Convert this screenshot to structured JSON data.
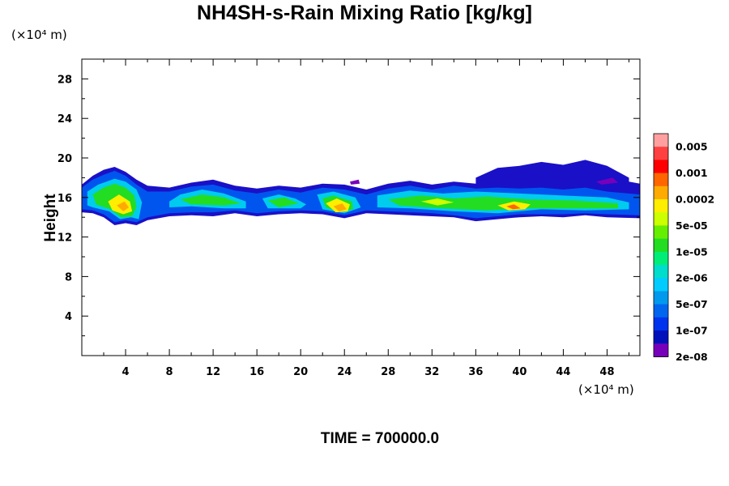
{
  "chart_data": {
    "type": "filled-contour",
    "title": "NH4SH-s-Rain Mixing Ratio [kg/kg]",
    "xunit": "(×10⁴ m)",
    "yunit": "(×10⁴ m)",
    "xlabel": "",
    "ylabel": "Height",
    "xlim": [
      0,
      51
    ],
    "ylim": [
      0,
      30
    ],
    "xticks": [
      4,
      8,
      12,
      16,
      20,
      24,
      28,
      32,
      36,
      40,
      44,
      48
    ],
    "yticks": [
      4,
      8,
      12,
      16,
      20,
      24,
      28
    ],
    "colorbar": {
      "labels": [
        "0.005",
        "0.001",
        "0.0002",
        "5e-05",
        "1e-05",
        "2e-06",
        "5e-07",
        "1e-07",
        "2e-08"
      ],
      "colors": [
        "#ff9f9f",
        "#ff4040",
        "#ff0000",
        "#ff6600",
        "#ffaa00",
        "#ffee00",
        "#ccff00",
        "#66ee00",
        "#22dd22",
        "#00ee77",
        "#00ddcc",
        "#00ccff",
        "#0099ee",
        "#0066ee",
        "#0033ee",
        "#0011bb",
        "#7700bb"
      ]
    },
    "field": {
      "layer_bottom_km_x1e4": 14.0,
      "layer_top_km_x1e4": 17.5,
      "features": [
        {
          "x_center": 4.5,
          "y_center": 15.5,
          "peak": "0.0002"
        },
        {
          "x_center": 11.5,
          "y_center": 15.5,
          "peak": "1e-05"
        },
        {
          "x_center": 18.5,
          "y_center": 15.2,
          "peak": "5e-05"
        },
        {
          "x_center": 23.5,
          "y_center": 14.8,
          "peak": "0.0002"
        },
        {
          "x_center": 33.0,
          "y_center": 15.5,
          "peak": "5e-05"
        },
        {
          "x_center": 39.5,
          "y_center": 14.8,
          "peak": "0.0002"
        },
        {
          "x_center": 46.0,
          "y_center": 18.0,
          "peak": "1e-07"
        }
      ]
    },
    "footer": "TIME = 700000.0"
  }
}
